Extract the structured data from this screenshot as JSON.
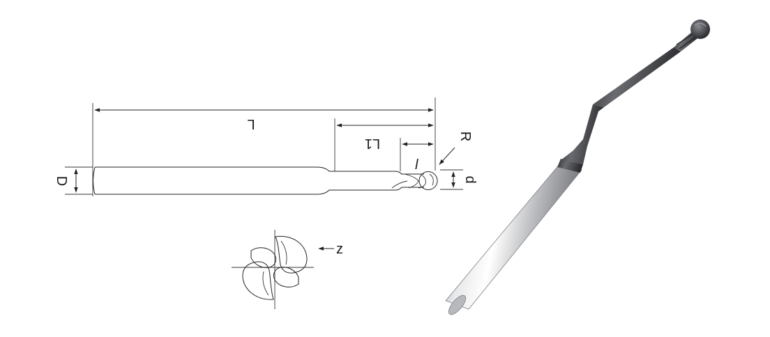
{
  "drawing": {
    "labels": {
      "L": "L",
      "L1": "L1",
      "l": "l",
      "R": "R",
      "D": "D",
      "d": "d",
      "z": "z"
    }
  },
  "colors": {
    "background": "#ffffff",
    "line": "#222222",
    "tool_coating": "#4a4b4f",
    "shank_silver": "#c8c9cc"
  },
  "icons": {
    "end_view": "end-view-icon",
    "product_photo": "ball-end-mill-render"
  }
}
